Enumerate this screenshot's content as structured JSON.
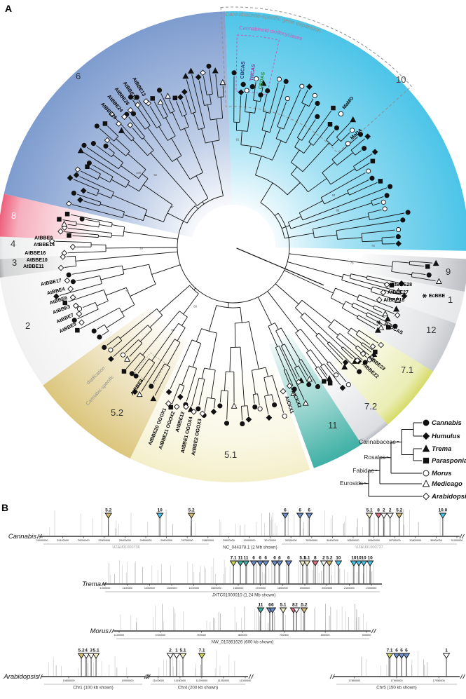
{
  "figure": {
    "panelA_label": "A",
    "panelB_label": "B"
  },
  "panelA": {
    "annotations": {
      "expansion_label": "Cannabaceae-specific gene expansion",
      "expansion_color": "#8f8f8f",
      "oxidocyclases_label": "Cannabinoid oxidocyclases",
      "oxidocyclases_color": "#c45cb8",
      "duplication_label_line1": "Cannabis-specific",
      "duplication_label_line2": "duplication",
      "duplication_color": "#8f8f8f"
    },
    "synthases": [
      {
        "name": "CBCAS",
        "color": "#253a75",
        "a": 3.5,
        "r": 240
      },
      {
        "name": "THCAS",
        "color": "#a02c9a",
        "a": 6.8,
        "r": 238
      },
      {
        "name": "CBDAS",
        "color": "#2f8f3c",
        "a": 10.2,
        "r": 228
      }
    ],
    "clades": [
      {
        "id": "10",
        "color": "#4cc4e8",
        "a0": -2,
        "a1": 91,
        "rin": 60,
        "tips": 36,
        "tipr": 232,
        "nx": 565,
        "ny": 118,
        "nc": "#444",
        "pool": [
          "c",
          "oc",
          "oc",
          "c",
          "d",
          "t",
          "c",
          "oc",
          "s",
          "c"
        ]
      },
      {
        "id": "9",
        "color": "#bcbfc4",
        "a0": 93,
        "a1": 101,
        "rin": 185,
        "tips": 4,
        "tipr": 280,
        "nx": 636,
        "ny": 392,
        "nc": "#333",
        "symbols": [
          "t",
          "s",
          "c",
          "ot"
        ]
      },
      {
        "id": "1",
        "color": "#e6e7e9",
        "a0": 101,
        "a1": 109,
        "rin": 170,
        "tips": 5,
        "tipr": 235,
        "nx": 639,
        "ny": 432,
        "nc": "#333"
      },
      {
        "id": "12",
        "color": "#c7cace",
        "a0": 109,
        "a1": 122,
        "rin": 200,
        "tips": 8,
        "tipr": 238,
        "nx": 608,
        "ny": 475,
        "nc": "#333"
      },
      {
        "id": "7.1",
        "color": "#d6db68",
        "a0": 122,
        "a1": 139,
        "rin": 215,
        "tips": 12,
        "tipr": 238,
        "nx": 572,
        "ny": 532,
        "nc": "#333"
      },
      {
        "id": "7.2",
        "color": "#b8bcc3",
        "a0": 139,
        "a1": 147,
        "rin": 228,
        "tips": 6,
        "tipr": 242,
        "nx": 520,
        "ny": 584,
        "nc": "#333"
      },
      {
        "id": "11",
        "color": "#3fb0a5",
        "a0": 147,
        "a1": 160,
        "rin": 148,
        "tips": 8,
        "tipr": 225,
        "nx": 468,
        "ny": 611,
        "nc": "#333"
      },
      {
        "id": "5.1",
        "color": "#f4efc9",
        "a0": 161,
        "a1": 206,
        "rin": 178,
        "tips": 18,
        "tipr": 238,
        "nx": 320,
        "ny": 653,
        "nc": "#333"
      },
      {
        "id": "5.2",
        "color": "#dcc67d",
        "a0": 206,
        "a1": 234,
        "rin": 148,
        "tips": 12,
        "tipr": 230,
        "nx": 158,
        "ny": 593,
        "nc": "#333"
      },
      {
        "id": "2",
        "color": "#f1f1f2",
        "a0": 234,
        "a1": 262.5,
        "rin": 168,
        "tips": 9,
        "tipr": 242,
        "nx": 36,
        "ny": 469,
        "nc": "#333"
      },
      {
        "id": "3",
        "color": "#a7a8aa",
        "a0": 262.5,
        "a1": 267,
        "rin": 228,
        "tips": 2,
        "tipr": 238,
        "nx": 17,
        "ny": 379,
        "nc": "#333",
        "symbols": [
          "od"
        ]
      },
      {
        "id": "4",
        "color": "#dadbdd",
        "a0": 267,
        "a1": 272.5,
        "rin": 228,
        "tips": 3,
        "tipr": 240,
        "nx": 15,
        "ny": 352,
        "nc": "#333",
        "symbols": [
          "od"
        ]
      },
      {
        "id": "8",
        "color": "#ed5f7c",
        "a0": 272.5,
        "a1": 283,
        "rin": 208,
        "tips": 7,
        "tipr": 230,
        "nx": 16,
        "ny": 312,
        "nc": "#fff"
      },
      {
        "id": "6",
        "color": "#7e9ccf",
        "a0": 283,
        "a1": 358,
        "rin": 60,
        "tips": 38,
        "tipr": 238,
        "nx": 108,
        "ny": 113,
        "nc": "#333",
        "pool": [
          "c",
          "s",
          "t",
          "d",
          "od",
          "ot",
          "c",
          "c",
          "t",
          "s"
        ]
      }
    ],
    "gene_labels": [
      {
        "text": "AtBBE25",
        "a": 317,
        "r": 248,
        "marker": "od"
      },
      {
        "text": "AtBBE24",
        "a": 320,
        "r": 250,
        "marker": "od"
      },
      {
        "text": "AtBBE26",
        "a": 323,
        "r": 252,
        "marker": "od"
      },
      {
        "text": "AtBBE15",
        "a": 326,
        "r": 252,
        "marker": "od"
      },
      {
        "text": "AtBBE13",
        "a": 329,
        "r": 250,
        "marker": "od"
      },
      {
        "text": "MaMO",
        "a": 39,
        "r": 252,
        "marker": "oc"
      },
      {
        "text": "MaDA",
        "a": 48,
        "r": 228,
        "marker": "oc"
      },
      {
        "text": "EcBBE",
        "a": 104.5,
        "r": 288,
        "mode": "h",
        "marker": "ast",
        "bold": true
      },
      {
        "text": "AtBBE28",
        "a": 104,
        "r": 232,
        "mode": "h",
        "marker": "od"
      },
      {
        "text": "AtBBE27",
        "a": 107,
        "r": 230,
        "mode": "h",
        "marker": "od"
      },
      {
        "text": "AtBBE18",
        "a": 110,
        "r": 228,
        "mode": "h",
        "marker": "od"
      },
      {
        "text": "RdDCAS",
        "a": 117.5,
        "r": 242,
        "marker": "ast",
        "bold": true
      },
      {
        "text": "AtBBE23",
        "a": 129.5,
        "r": 248,
        "marker": "od"
      },
      {
        "text": "AtBBE22",
        "a": 132.5,
        "r": 248,
        "marker": "od"
      },
      {
        "text": "AtCKX2",
        "a": 158,
        "r": 222,
        "marker": "od"
      },
      {
        "text": "AtCKX1",
        "a": 161,
        "r": 226,
        "marker": "od"
      },
      {
        "text": "AtBBE2 OGOX3",
        "a": 190.5,
        "r": 250,
        "marker": "od"
      },
      {
        "text": "AtBBE1 OGOX4",
        "a": 193.5,
        "r": 250,
        "marker": "od"
      },
      {
        "text": "AtBBE12",
        "a": 196.5,
        "r": 246,
        "marker": "od"
      },
      {
        "text": "AtBBE21 OGOX2",
        "a": 199.5,
        "r": 250,
        "marker": "od"
      },
      {
        "text": "AtBBE20 OGOX1",
        "a": 202.5,
        "r": 250,
        "marker": "od"
      },
      {
        "text": "AtBBE8",
        "a": 214,
        "r": 230,
        "bold": true
      },
      {
        "text": "AtBBE17",
        "a": 258.5,
        "r": 250,
        "marker": "od"
      },
      {
        "text": "AtBBE4",
        "a": 255.5,
        "r": 248,
        "marker": "od"
      },
      {
        "text": "AtBBE6",
        "a": 252.5,
        "r": 248,
        "marker": "od"
      },
      {
        "text": "AtBBE3",
        "a": 249.5,
        "r": 248,
        "marker": "od"
      },
      {
        "text": "AtBBE7",
        "a": 246.5,
        "r": 248,
        "marker": "od"
      },
      {
        "text": "AtBBE5",
        "a": 243.5,
        "r": 250,
        "marker": "od"
      },
      {
        "text": "AtBBE9",
        "a": 272.3,
        "r": 258,
        "mode": "h"
      },
      {
        "text": "AtBBE14",
        "a": 270.2,
        "r": 255,
        "mode": "h"
      },
      {
        "text": "AtBBE16",
        "a": 267.6,
        "r": 268,
        "mode": "h"
      },
      {
        "text": "AtBBE10",
        "a": 265.5,
        "r": 266,
        "mode": "h"
      },
      {
        "text": "AtBBE11",
        "a": 263.7,
        "r": 272,
        "mode": "h"
      }
    ],
    "support_values": [
      "99",
      "100",
      "84",
      "76",
      "92",
      "78",
      "95",
      "88",
      "73",
      "81",
      "97",
      "68"
    ],
    "legend": {
      "clade_groups": [
        "Cannabaceae",
        "Rosales",
        "Fabidae",
        "Eurosids"
      ],
      "taxa": [
        {
          "name": "Cannabis",
          "symbol": "c"
        },
        {
          "name": "Humulus",
          "symbol": "d"
        },
        {
          "name": "Trema",
          "symbol": "t"
        },
        {
          "name": "Parasponia",
          "symbol": "s"
        },
        {
          "name": "Morus",
          "symbol": "oc"
        },
        {
          "name": "Medicago",
          "symbol": "ot"
        },
        {
          "name": "Arabidopsis",
          "symbol": "od"
        }
      ]
    }
  },
  "panelB": {
    "marker_colors": {
      "1": "#ffffff",
      "2": "#ffffff",
      "3": "#ffffff",
      "4": "#ffffff",
      "5.1": "#f4efc9",
      "5.2": "#d3bd72",
      "6": "#6d8fc9",
      "7.1": "#ccd356",
      "8": "#e06a82",
      "10": "#4cc4e8",
      "10.0": "#4cc4e8",
      "11": "#3fb0a5"
    },
    "tracks": [
      {
        "name": "Cannabis",
        "ticks": [
          29000000,
          29100000,
          29200000,
          29300000,
          29400000,
          29500000,
          29600000,
          29700000,
          29800000,
          29900000,
          30000000,
          30100000,
          30200000,
          30300000,
          30400000,
          30500000,
          30600000,
          30700000,
          30800000,
          30900000,
          31000000
        ],
        "caption_left": "UZAU01000736",
        "caption_center": "NC_044378.1 (2 Mb shown)",
        "caption_right": "UZAU01000737",
        "markers": [
          {
            "clade": "5.2",
            "f": 0.16
          },
          {
            "clade": "10",
            "f": 0.284
          },
          {
            "clade": "5.2",
            "f": 0.36
          },
          {
            "clade": "6",
            "f": 0.586
          },
          {
            "clade": "6",
            "f": 0.622
          },
          {
            "clade": "6",
            "f": 0.644
          },
          {
            "clade": "5.1",
            "f": 0.789
          },
          {
            "clade": "8",
            "f": 0.811
          },
          {
            "clade": "2",
            "f": 0.824
          },
          {
            "clade": "2",
            "f": 0.839
          },
          {
            "clade": "5.2",
            "f": 0.861
          },
          {
            "clade": "10.0",
            "f": 0.966
          }
        ]
      },
      {
        "name": "Trema",
        "ticks": [
          1000000,
          1100000,
          1200000,
          1300000,
          1400000,
          1500000,
          1600000,
          1700000,
          1800000,
          1900000,
          2000000,
          2100000,
          2200000
        ],
        "caption_center": "JXTC01000010 (1.24 Mb shown)",
        "markers": [
          {
            "clade": "7.1",
            "f": 0.482
          },
          {
            "clade": "11",
            "f": 0.508
          },
          {
            "clade": "11",
            "f": 0.529
          },
          {
            "clade": "6",
            "f": 0.558
          },
          {
            "clade": "6",
            "f": 0.582
          },
          {
            "clade": "6",
            "f": 0.603
          },
          {
            "clade": "6",
            "f": 0.637
          },
          {
            "clade": "6",
            "f": 0.655
          },
          {
            "clade": "6",
            "f": 0.689
          },
          {
            "clade": "5.1",
            "f": 0.742
          },
          {
            "clade": "5.1",
            "f": 0.758
          },
          {
            "clade": "8",
            "f": 0.789
          },
          {
            "clade": "2",
            "f": 0.821
          },
          {
            "clade": "5.2",
            "f": 0.842
          },
          {
            "clade": "10",
            "f": 0.876
          },
          {
            "clade": "10",
            "f": 0.934
          },
          {
            "clade": "10",
            "f": 0.953
          },
          {
            "clade": "10",
            "f": 0.971
          },
          {
            "clade": "10",
            "f": 0.995
          }
        ]
      },
      {
        "name": "Morus",
        "ticks": [
          1100000,
          1000000,
          900000,
          800000,
          700000,
          600000,
          500000
        ],
        "caption_center": "NW_010361626 (600 kb shown)",
        "markers": [
          {
            "clade": "11",
            "f": 0.572
          },
          {
            "clade": "6",
            "f": 0.609
          },
          {
            "clade": "6",
            "f": 0.62
          },
          {
            "clade": "5.1",
            "f": 0.663
          },
          {
            "clade": "8",
            "f": 0.705
          },
          {
            "clade": "2",
            "f": 0.717
          },
          {
            "clade": "5.2",
            "f": 0.748
          }
        ]
      },
      {
        "name": "Arabidopsis",
        "segments": [
          {
            "caption": "Chr1 (100 kb shown)",
            "ticks": [
              [
                19800000,
                0.25
              ],
              [
                19900000,
                0.85
              ]
            ],
            "markers": [
              {
                "clade": "5.2",
                "f": 0.379
              },
              {
                "clade": "4",
                "f": 0.429
              },
              {
                "clade": "3",
                "f": 0.479
              },
              {
                "clade": "5.1",
                "f": 0.529
              }
            ]
          },
          {
            "caption": "Chr4 (200 kb shown)",
            "ticks": [
              [
                11100000,
                0.08
              ],
              [
                11150000,
                0.31
              ],
              [
                11200000,
                0.54
              ],
              [
                11250000,
                0.77
              ],
              [
                11300000,
                1.0
              ]
            ],
            "markers": [
              {
                "clade": "2",
                "f": 0.207
              },
              {
                "clade": "1",
                "f": 0.274
              },
              {
                "clade": "5.1",
                "f": 0.341
              },
              {
                "clade": "7.1",
                "f": 0.541
              }
            ]
          },
          {
            "caption": "Chr5 (150 kb shown)",
            "ticks": [
              [
                17850000,
                0.15
              ],
              [
                17900000,
                0.5
              ],
              [
                17950000,
                0.85
              ]
            ],
            "markers": [
              {
                "clade": "7.1",
                "f": 0.442
              },
              {
                "clade": "6",
                "f": 0.5
              },
              {
                "clade": "6",
                "f": 0.541
              },
              {
                "clade": "6",
                "f": 0.581
              },
              {
                "clade": "1",
                "f": 0.913
              }
            ]
          }
        ]
      }
    ]
  }
}
